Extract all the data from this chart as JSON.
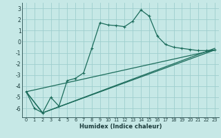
{
  "xlabel": "Humidex (Indice chaleur)",
  "bg_color": "#c6e8e6",
  "grid_color": "#9ecece",
  "line_color": "#1a6b5a",
  "xlim": [
    -0.5,
    23.5
  ],
  "ylim": [
    -6.8,
    3.5
  ],
  "yticks": [
    3,
    2,
    1,
    0,
    -1,
    -2,
    -3,
    -4,
    -5,
    -6
  ],
  "xticks": [
    0,
    1,
    2,
    3,
    4,
    5,
    6,
    7,
    8,
    9,
    10,
    11,
    12,
    13,
    14,
    15,
    16,
    17,
    18,
    19,
    20,
    21,
    22,
    23
  ],
  "main_line_x": [
    0,
    1,
    2,
    3,
    4,
    5,
    6,
    7,
    8,
    9,
    10,
    11,
    12,
    13,
    14,
    15,
    16,
    17,
    18,
    19,
    20,
    21,
    22,
    23
  ],
  "main_line_y": [
    -4.5,
    -6.0,
    -6.4,
    -5.0,
    -5.8,
    -3.5,
    -3.3,
    -2.8,
    -0.6,
    1.7,
    1.5,
    1.45,
    1.35,
    1.85,
    2.85,
    2.3,
    0.5,
    -0.25,
    -0.5,
    -0.6,
    -0.7,
    -0.8,
    -0.8,
    -0.75
  ],
  "line2_x": [
    0,
    23
  ],
  "line2_y": [
    -4.5,
    -0.75
  ],
  "line3_x": [
    0,
    2,
    23
  ],
  "line3_y": [
    -4.5,
    -6.4,
    -0.75
  ],
  "line4_x": [
    0,
    2,
    23
  ],
  "line4_y": [
    -4.5,
    -6.4,
    -0.6
  ]
}
